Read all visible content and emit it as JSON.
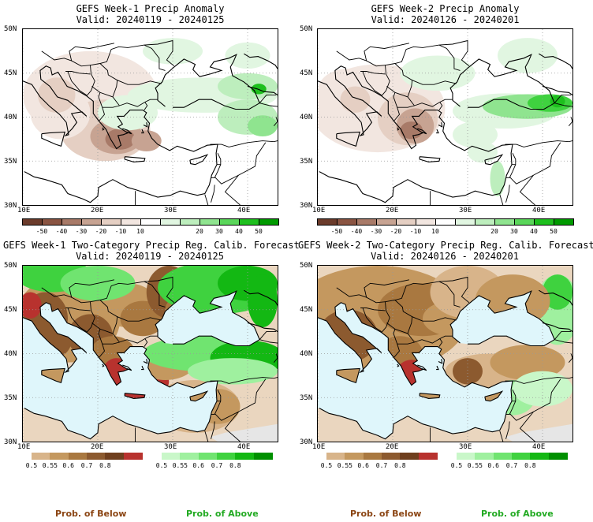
{
  "panels": [
    {
      "title": "GEFS Week-1 Precip Anomaly",
      "valid": "Valid: 20240119 - 20240125"
    },
    {
      "title": "GEFS Week-2 Precip Anomaly",
      "valid": "Valid: 20240126 - 20240201"
    },
    {
      "title": "GEFS Week-1 Two-Category Precip Reg. Calib. Forecast",
      "valid": "Valid: 20240119 - 20240125"
    },
    {
      "title": "GEFS Week-2 Two-Category Precip Reg. Calib. Forecast",
      "valid": "Valid: 20240126 - 20240201"
    }
  ],
  "axes": {
    "lat_labels": [
      "50N",
      "45N",
      "40N",
      "35N",
      "30N"
    ],
    "lon_labels": [
      "10E",
      "20E",
      "30E",
      "40E"
    ]
  },
  "anomaly_colorbar": {
    "ticks": [
      "-50",
      "-40",
      "-30",
      "-20",
      "-10",
      "10",
      "20",
      "30",
      "40",
      "50"
    ],
    "colors": [
      "#6b3b2b",
      "#8a5442",
      "#a87a68",
      "#c7a392",
      "#e5cfc3",
      "#f2e6e0",
      "#ffffff",
      "#e1f6e1",
      "#bdeebd",
      "#8fe48f",
      "#5ad65a",
      "#1ebf1e",
      "#009a00"
    ]
  },
  "prob_colorbars": {
    "below": {
      "ticks": [
        "0.5",
        "0.55",
        "0.6",
        "0.7",
        "0.8"
      ],
      "colors": [
        "#d8b48a",
        "#c4985f",
        "#a97840",
        "#8c5a2f",
        "#6f3f1e",
        "#b8322e"
      ]
    },
    "above": {
      "ticks": [
        "0.5",
        "0.55",
        "0.6",
        "0.7",
        "0.8"
      ],
      "colors": [
        "#c9f7c9",
        "#9ff09f",
        "#70e470",
        "#3fd23f",
        "#13b813",
        "#009000"
      ]
    }
  },
  "labels": {
    "below": "Prob. of Below",
    "above": "Prob. of Above"
  },
  "colors": {
    "below_label": "#8b4513",
    "above_label": "#22aa22",
    "sea": "#dff6fb",
    "land_base": "#ffffff"
  }
}
